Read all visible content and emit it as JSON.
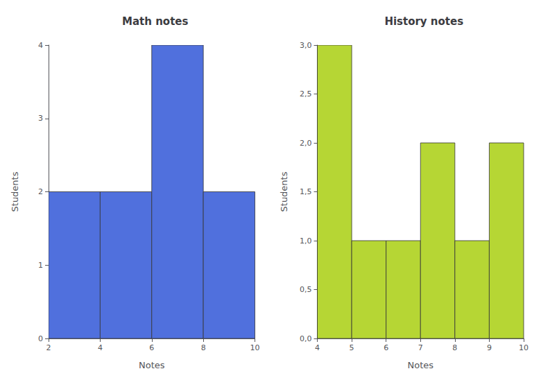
{
  "chart_data": [
    {
      "type": "histogram",
      "title": "Math notes",
      "xlabel": "Notes",
      "ylabel": "Students",
      "bins": [
        2,
        4,
        6,
        8,
        10
      ],
      "values": [
        2,
        2,
        4,
        2
      ],
      "xlim": [
        2,
        10
      ],
      "ylim": [
        0,
        4
      ],
      "xticks": [
        2,
        4,
        6,
        8,
        10
      ],
      "yticks": [
        0,
        1,
        2,
        3,
        4
      ],
      "grid": false
    },
    {
      "type": "histogram",
      "title": "History notes",
      "xlabel": "Notes",
      "ylabel": "Students",
      "bins": [
        4,
        5,
        6,
        7,
        8,
        9,
        10
      ],
      "values": [
        3,
        1,
        1,
        2,
        1,
        2
      ],
      "xlim": [
        4,
        10
      ],
      "ylim": [
        0,
        3
      ],
      "xticks": [
        4,
        5,
        6,
        7,
        8,
        9,
        10
      ],
      "yticks": [
        {
          "value": 0.0,
          "label": "0,0"
        },
        {
          "value": 0.5,
          "label": "0,5"
        },
        {
          "value": 1.0,
          "label": "1,0"
        },
        {
          "value": 1.5,
          "label": "1,5"
        },
        {
          "value": 2.0,
          "label": "2,0"
        },
        {
          "value": 2.5,
          "label": "2,5"
        },
        {
          "value": 3.0,
          "label": "3,0"
        }
      ],
      "grid": false
    }
  ]
}
